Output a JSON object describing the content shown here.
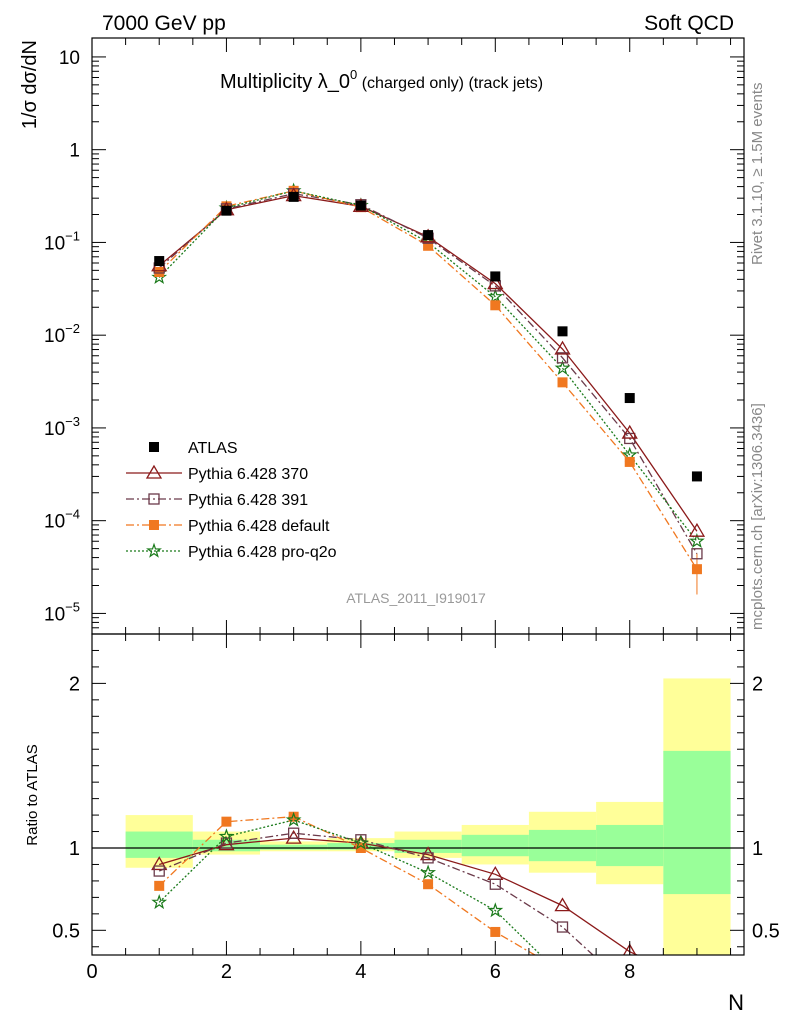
{
  "header": {
    "left": "7000 GeV pp",
    "right": "Soft QCD",
    "side_top": "Rivet 3.1.10, ≥ 1.5M events",
    "side_bottom": "mcplots.cern.ch [arXiv:1306.3436]"
  },
  "chart_data": [
    {
      "type": "scatter",
      "title_main": "Multiplicity λ_0",
      "title_sup": "0",
      "title_rest": " (charged only) (track jets)",
      "ylabel": "1/σ dσ/dN",
      "yscale": "log",
      "ylim": [
        6e-06,
        16
      ],
      "xlim": [
        0,
        9.7
      ],
      "analysis_tag": "ATLAS_2011_I919017",
      "y_tick_labels": [
        {
          "value": 10,
          "base": "10",
          "exp": ""
        },
        {
          "value": 1,
          "base": "1",
          "exp": ""
        },
        {
          "value": 0.1,
          "base": "10",
          "exp": "−1"
        },
        {
          "value": 0.01,
          "base": "10",
          "exp": "−2"
        },
        {
          "value": 0.001,
          "base": "10",
          "exp": "−3"
        },
        {
          "value": 0.0001,
          "base": "10",
          "exp": "−4"
        },
        {
          "value": 1e-05,
          "base": "10",
          "exp": "−5"
        }
      ],
      "x": [
        1,
        2,
        3,
        4,
        5,
        6,
        7,
        8,
        9
      ],
      "series": [
        {
          "name": "ATLAS",
          "color": "#000000",
          "marker": "square",
          "line": "none",
          "values": [
            0.063,
            0.22,
            0.31,
            0.25,
            0.12,
            0.043,
            0.011,
            0.0021,
            0.0003
          ]
        },
        {
          "name": "Pythia 6.428 370",
          "color": "#8b1a1a",
          "marker": "triangle-open",
          "line": "solid",
          "values": [
            0.056,
            0.225,
            0.32,
            0.245,
            0.115,
            0.036,
            0.0071,
            0.00088,
            7.7e-05
          ]
        },
        {
          "name": "Pythia 6.428 391",
          "color": "#6b3a4a",
          "marker": "square-open",
          "line": "dashdot",
          "values": [
            0.053,
            0.23,
            0.335,
            0.255,
            0.111,
            0.034,
            0.0057,
            0.00077,
            4.4e-05
          ]
        },
        {
          "name": "Pythia 6.428 default",
          "color": "#f07820",
          "marker": "square",
          "line": "dashdot",
          "values": [
            0.048,
            0.245,
            0.36,
            0.24,
            0.092,
            0.021,
            0.0031,
            0.00043,
            3e-05
          ]
        },
        {
          "name": "Pythia 6.428 pro-q2o",
          "color": "#1a7a1a",
          "marker": "star",
          "line": "dotted",
          "values": [
            0.042,
            0.235,
            0.36,
            0.25,
            0.1,
            0.026,
            0.0044,
            0.00051,
            6e-05
          ]
        }
      ]
    },
    {
      "type": "line",
      "ylabel": "Ratio to ATLAS",
      "xlabel": "N",
      "ylim": [
        0.35,
        2.3
      ],
      "xlim": [
        0,
        9.7
      ],
      "y_ticks": [
        0.5,
        1,
        2
      ],
      "y_tick_labels": [
        "0.5",
        "1",
        "2"
      ],
      "x_ticks": [
        0,
        2,
        4,
        6,
        8
      ],
      "x_tick_labels": [
        "0",
        "2",
        "4",
        "6",
        "8"
      ],
      "bands": [
        {
          "x0": 0.5,
          "x1": 1.5,
          "inner": [
            0.94,
            1.1
          ],
          "outer": [
            0.88,
            1.2
          ]
        },
        {
          "x0": 1.5,
          "x1": 2.5,
          "inner": [
            0.98,
            1.05
          ],
          "outer": [
            0.96,
            1.1
          ]
        },
        {
          "x0": 2.5,
          "x1": 3.5,
          "inner": [
            0.99,
            1.02
          ],
          "outer": [
            0.98,
            1.04
          ]
        },
        {
          "x0": 3.5,
          "x1": 4.5,
          "inner": [
            0.99,
            1.03
          ],
          "outer": [
            0.98,
            1.06
          ]
        },
        {
          "x0": 4.5,
          "x1": 5.5,
          "inner": [
            0.97,
            1.05
          ],
          "outer": [
            0.94,
            1.1
          ]
        },
        {
          "x0": 5.5,
          "x1": 6.5,
          "inner": [
            0.95,
            1.08
          ],
          "outer": [
            0.9,
            1.14
          ]
        },
        {
          "x0": 6.5,
          "x1": 7.5,
          "inner": [
            0.92,
            1.11
          ],
          "outer": [
            0.85,
            1.22
          ]
        },
        {
          "x0": 7.5,
          "x1": 8.5,
          "inner": [
            0.89,
            1.14
          ],
          "outer": [
            0.78,
            1.28
          ]
        },
        {
          "x0": 8.5,
          "x1": 9.5,
          "inner": [
            0.72,
            1.59
          ],
          "outer": [
            0.35,
            2.03
          ]
        }
      ],
      "series": [
        {
          "name": "Pythia 6.428 370",
          "values": [
            0.9,
            1.02,
            1.06,
            1.03,
            0.96,
            0.84,
            0.65,
            0.37,
            null
          ]
        },
        {
          "name": "Pythia 6.428 391",
          "values": [
            0.86,
            1.03,
            1.09,
            1.05,
            0.94,
            0.78,
            0.52,
            null,
            null
          ]
        },
        {
          "name": "Pythia 6.428 default",
          "values": [
            0.77,
            1.16,
            1.19,
            1.0,
            0.78,
            0.49,
            null,
            null,
            null
          ]
        },
        {
          "name": "Pythia 6.428 pro-q2o",
          "values": [
            0.67,
            1.07,
            1.17,
            1.03,
            0.85,
            0.62,
            null,
            null,
            null
          ]
        }
      ]
    }
  ]
}
